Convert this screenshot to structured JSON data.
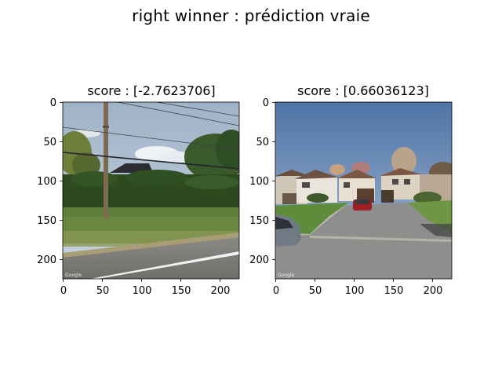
{
  "figure": {
    "suptitle": "right winner : prédiction vraie"
  },
  "panels": [
    {
      "title": "score : [-2.7623706]",
      "image_subject": "rural roadside with utility pole, hedge, grass and road",
      "x_ticks": [
        "0",
        "50",
        "100",
        "150",
        "200"
      ],
      "y_ticks": [
        "0",
        "50",
        "100",
        "150",
        "200"
      ],
      "watermark": "Google"
    },
    {
      "title": "score : [0.66036123]",
      "image_subject": "suburban street with townhouses, parked cars and lawn",
      "x_ticks": [
        "0",
        "50",
        "100",
        "150",
        "200"
      ],
      "y_ticks": [
        "0",
        "50",
        "100",
        "150",
        "200"
      ],
      "watermark": "Google"
    }
  ]
}
